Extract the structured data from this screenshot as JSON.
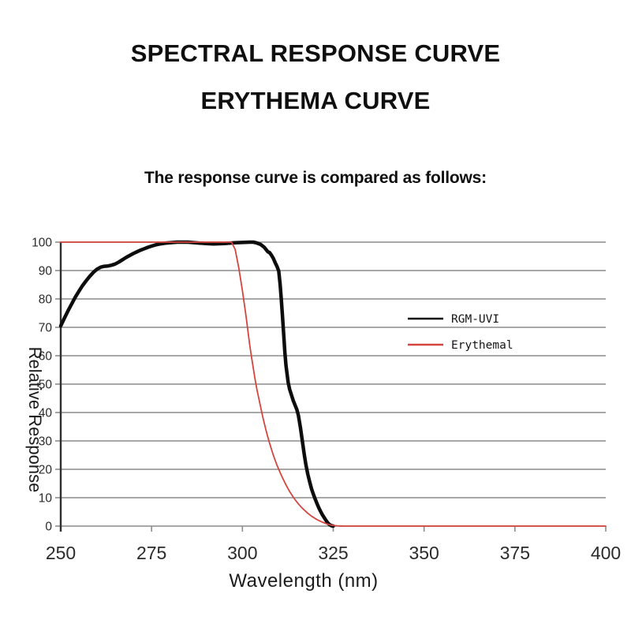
{
  "page": {
    "background": "#ffffff",
    "title_line1": "SPECTRAL RESPONSE CURVE",
    "title_line2": "ERYTHEMA CURVE",
    "subtitle": "The response curve is compared as follows:"
  },
  "chart_data": {
    "type": "line",
    "title": "",
    "xlabel": "Wavelength (nm)",
    "ylabel": "Relative Response",
    "xlim": [
      250,
      400
    ],
    "ylim": [
      0,
      100
    ],
    "x_ticks": [
      250,
      275,
      300,
      325,
      350,
      375,
      400
    ],
    "y_ticks": [
      0,
      10,
      20,
      30,
      40,
      50,
      60,
      70,
      80,
      90,
      100
    ],
    "grid": "horizontal-only",
    "legend_position": "center-right",
    "colors": {
      "grid": "#8c8c8c",
      "axis": "#2e2e2e",
      "tick_label": "#2b2b2b",
      "axis_title": "#1c1c1c",
      "legend_text": "#141414"
    },
    "series": [
      {
        "name": "RGM-UVI",
        "color": "#0d0d0d",
        "stroke_width": 4.5,
        "points": [
          [
            250,
            70.5
          ],
          [
            251,
            73.2
          ],
          [
            252,
            75.8
          ],
          [
            253,
            78.2
          ],
          [
            254,
            80.6
          ],
          [
            255,
            82.7
          ],
          [
            256,
            84.7
          ],
          [
            257,
            86.4
          ],
          [
            258,
            88
          ],
          [
            259,
            89.4
          ],
          [
            260,
            90.5
          ],
          [
            261,
            91.2
          ],
          [
            262,
            91.5
          ],
          [
            263,
            91.6
          ],
          [
            264,
            91.9
          ],
          [
            265,
            92.3
          ],
          [
            266,
            93
          ],
          [
            267,
            93.8
          ],
          [
            268,
            94.6
          ],
          [
            269,
            95.3
          ],
          [
            270,
            96
          ],
          [
            271,
            96.6
          ],
          [
            272,
            97.2
          ],
          [
            273,
            97.7
          ],
          [
            274,
            98.2
          ],
          [
            275,
            98.6
          ],
          [
            276,
            99
          ],
          [
            277,
            99.3
          ],
          [
            278,
            99.5
          ],
          [
            279,
            99.7
          ],
          [
            280,
            99.8
          ],
          [
            282,
            100
          ],
          [
            285,
            100
          ],
          [
            288,
            99.7
          ],
          [
            290,
            99.5
          ],
          [
            292,
            99.4
          ],
          [
            295,
            99.5
          ],
          [
            298,
            99.8
          ],
          [
            300,
            99.9
          ],
          [
            302,
            100
          ],
          [
            303,
            100
          ],
          [
            304,
            99.7
          ],
          [
            305,
            99.2
          ],
          [
            306,
            98.2
          ],
          [
            307,
            96.6
          ],
          [
            307.5,
            96.3
          ],
          [
            308,
            95.4
          ],
          [
            308.5,
            94.3
          ],
          [
            309,
            92.8
          ],
          [
            309.5,
            91.5
          ],
          [
            310,
            89.8
          ],
          [
            310.4,
            85
          ],
          [
            310.7,
            80
          ],
          [
            311,
            74.5
          ],
          [
            311.4,
            67
          ],
          [
            311.7,
            61
          ],
          [
            312,
            56.5
          ],
          [
            312.6,
            50.5
          ],
          [
            313,
            48.2
          ],
          [
            314,
            44.2
          ],
          [
            315,
            41
          ],
          [
            315.4,
            39
          ],
          [
            316,
            34.5
          ],
          [
            316.5,
            30
          ],
          [
            317,
            25.5
          ],
          [
            317.5,
            21.5
          ],
          [
            318,
            18.2
          ],
          [
            318.5,
            15.6
          ],
          [
            319,
            13.2
          ],
          [
            319.5,
            11.3
          ],
          [
            320,
            9.6
          ],
          [
            320.5,
            8
          ],
          [
            321,
            6.5
          ],
          [
            321.5,
            5.2
          ],
          [
            322,
            4
          ],
          [
            322.5,
            3
          ],
          [
            323,
            2
          ],
          [
            323.5,
            1.1
          ],
          [
            324,
            0.5
          ],
          [
            324.5,
            0.15
          ],
          [
            325,
            0
          ]
        ]
      },
      {
        "name": "Erythemal",
        "color": "#d4453e",
        "stroke_width": 1.8,
        "points": [
          [
            250,
            100
          ],
          [
            296,
            100
          ],
          [
            297,
            100
          ],
          [
            298,
            97.5
          ],
          [
            299,
            91
          ],
          [
            300,
            83
          ],
          [
            300.5,
            78.5
          ],
          [
            301,
            74
          ],
          [
            301.5,
            69
          ],
          [
            302,
            64
          ],
          [
            302.5,
            59.5
          ],
          [
            303,
            55.5
          ],
          [
            303.5,
            51.5
          ],
          [
            304,
            48
          ],
          [
            304.5,
            45
          ],
          [
            305,
            42
          ],
          [
            305.5,
            39
          ],
          [
            306,
            36.3
          ],
          [
            306.5,
            33.7
          ],
          [
            307,
            31.3
          ],
          [
            307.5,
            29.1
          ],
          [
            308,
            27
          ],
          [
            308.5,
            25
          ],
          [
            309,
            23.2
          ],
          [
            309.5,
            21.5
          ],
          [
            310,
            20
          ],
          [
            310.5,
            18.5
          ],
          [
            311,
            17.1
          ],
          [
            311.5,
            15.8
          ],
          [
            312,
            14.5
          ],
          [
            312.5,
            13.3
          ],
          [
            313,
            12.2
          ],
          [
            313.5,
            11.2
          ],
          [
            314,
            10.2
          ],
          [
            314.5,
            9.3
          ],
          [
            315,
            8.5
          ],
          [
            315.5,
            7.7
          ],
          [
            316,
            7
          ],
          [
            316.5,
            6.3
          ],
          [
            317,
            5.7
          ],
          [
            317.5,
            5.1
          ],
          [
            318,
            4.5
          ],
          [
            318.5,
            4
          ],
          [
            319,
            3.5
          ],
          [
            319.5,
            3.1
          ],
          [
            320,
            2.7
          ],
          [
            320.5,
            2.3
          ],
          [
            321,
            2
          ],
          [
            321.5,
            1.7
          ],
          [
            322,
            1.4
          ],
          [
            322.5,
            1.15
          ],
          [
            323,
            0.9
          ],
          [
            323.5,
            0.7
          ],
          [
            324,
            0.5
          ],
          [
            324.5,
            0.35
          ],
          [
            325,
            0.25
          ],
          [
            326,
            0.12
          ],
          [
            327,
            0.05
          ],
          [
            328,
            0
          ],
          [
            400,
            0
          ]
        ]
      }
    ]
  }
}
